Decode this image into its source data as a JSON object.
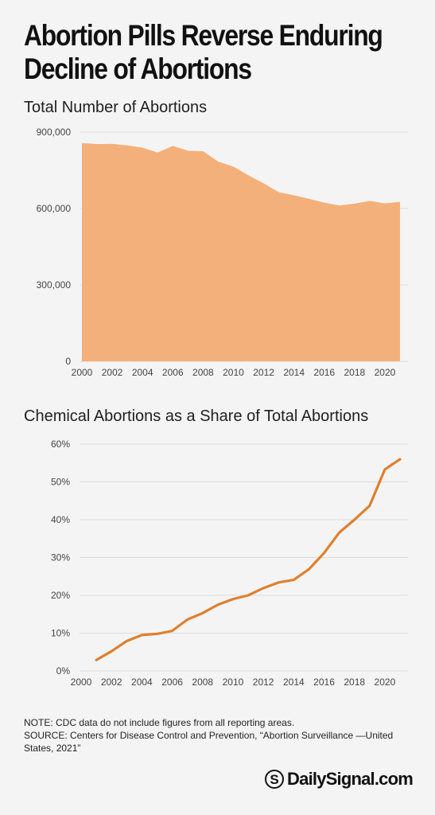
{
  "headline": {
    "line1": "Abortion Pills Reverse Enduring",
    "line2": "Decline of Abortions"
  },
  "chart_data": [
    {
      "type": "area",
      "title": "Total Number of Abortions",
      "xlabel": "",
      "ylabel": "",
      "x": [
        2000,
        2001,
        2002,
        2003,
        2004,
        2005,
        2006,
        2007,
        2008,
        2009,
        2010,
        2011,
        2012,
        2013,
        2014,
        2015,
        2016,
        2017,
        2018,
        2019,
        2020,
        2021
      ],
      "values": [
        857000,
        853000,
        854000,
        848000,
        839000,
        820000,
        846000,
        827000,
        825000,
        784000,
        765000,
        730000,
        699000,
        664000,
        652000,
        638000,
        623000,
        612000,
        619000,
        630000,
        620000,
        626000
      ],
      "xlim": [
        2000,
        2021
      ],
      "ylim": [
        0,
        900000
      ],
      "y_ticks": [
        {
          "value": 0,
          "label": "0"
        },
        {
          "value": 300000,
          "label": "300,000"
        },
        {
          "value": 600000,
          "label": "600,000"
        },
        {
          "value": 900000,
          "label": "900,000"
        }
      ],
      "x_ticks": [
        "2000",
        "2002",
        "2004",
        "2006",
        "2008",
        "2010",
        "2012",
        "2014",
        "2016",
        "2018",
        "2020"
      ],
      "color": "#f4b07a",
      "grid": true
    },
    {
      "type": "line",
      "title": "Chemical Abortions as a Share of Total Abortions",
      "xlabel": "",
      "ylabel": "",
      "x": [
        2001,
        2002,
        2003,
        2004,
        2005,
        2006,
        2007,
        2008,
        2009,
        2010,
        2011,
        2012,
        2013,
        2014,
        2015,
        2016,
        2017,
        2018,
        2019,
        2020,
        2021
      ],
      "values": [
        2.9,
        5.2,
        7.9,
        9.5,
        9.8,
        10.6,
        13.6,
        15.3,
        17.5,
        19.0,
        20.0,
        21.9,
        23.4,
        24.1,
        26.9,
        31.2,
        36.6,
        40.0,
        43.7,
        53.3,
        56.0
      ],
      "xlim": [
        2000,
        2021
      ],
      "ylim": [
        0,
        60
      ],
      "y_ticks": [
        {
          "value": 0,
          "label": "0%"
        },
        {
          "value": 10,
          "label": "10%"
        },
        {
          "value": 20,
          "label": "20%"
        },
        {
          "value": 30,
          "label": "30%"
        },
        {
          "value": 40,
          "label": "40%"
        },
        {
          "value": 50,
          "label": "50%"
        },
        {
          "value": 60,
          "label": "60%"
        }
      ],
      "x_ticks": [
        "2000",
        "2002",
        "2004",
        "2006",
        "2008",
        "2010",
        "2012",
        "2014",
        "2016",
        "2018",
        "2020"
      ],
      "color": "#e0802f",
      "grid": true
    }
  ],
  "notes": {
    "note": "NOTE: CDC data do not include figures from all reporting areas.",
    "source": "SOURCE: Centers for Disease Control and Prevention, “Abortion Surveillance —United States, 2021”"
  },
  "brand": {
    "mark": "S",
    "name": "DailySignal.com"
  }
}
